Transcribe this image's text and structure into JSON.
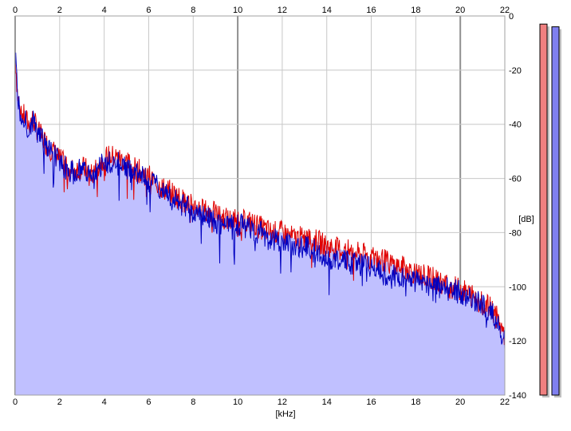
{
  "chart_data": {
    "type": "area",
    "xlabel": "[kHz]",
    "ylabel": "[dB]",
    "xlim": [
      0,
      22
    ],
    "ylim": [
      -140,
      0
    ],
    "x_ticks": [
      "0",
      "2",
      "4",
      "6",
      "8",
      "10",
      "12",
      "14",
      "16",
      "18",
      "20",
      "22"
    ],
    "y_ticks": [
      "0",
      "-20",
      "-40",
      "-60",
      "-80",
      "-100",
      "-120",
      "-140"
    ],
    "grid": true,
    "fill_color": "#c0c0ff",
    "series": [
      {
        "color": "#e00000",
        "x": [
          0,
          0.1,
          0.2,
          0.4,
          0.6,
          0.8,
          1,
          1.2,
          1.5,
          2,
          2.5,
          3,
          3.5,
          4,
          4.5,
          5,
          5.5,
          6,
          6.5,
          7,
          7.5,
          8,
          8.5,
          9,
          9.5,
          10,
          10.5,
          11,
          11.5,
          12,
          12.5,
          13,
          13.5,
          14,
          14.5,
          15,
          15.5,
          16,
          16.5,
          17,
          17.5,
          18,
          18.5,
          19,
          19.5,
          20,
          20.5,
          21,
          21.5,
          22
        ],
        "y": [
          -14,
          -28,
          -35,
          -37,
          -40,
          -38,
          -42,
          -45,
          -48,
          -53,
          -57,
          -56,
          -58,
          -52,
          -52,
          -54,
          -57,
          -59,
          -63,
          -65,
          -68,
          -70,
          -72,
          -73,
          -75,
          -76,
          -76,
          -78,
          -80,
          -80,
          -82,
          -82,
          -83,
          -85,
          -86,
          -87,
          -88,
          -89,
          -90,
          -92,
          -93,
          -95,
          -96,
          -98,
          -100,
          -101,
          -103,
          -106,
          -109,
          -118
        ]
      },
      {
        "color": "#0000c0",
        "x": [
          0,
          0.1,
          0.2,
          0.4,
          0.6,
          0.8,
          1,
          1.2,
          1.5,
          2,
          2.5,
          3,
          3.5,
          4,
          4.5,
          5,
          5.5,
          6,
          6.5,
          7,
          7.5,
          8,
          8.5,
          9,
          9.5,
          10,
          10.5,
          11,
          11.5,
          12,
          12.5,
          13,
          13.5,
          14,
          14.5,
          15,
          15.5,
          16,
          16.5,
          17,
          17.5,
          18,
          18.5,
          19,
          19.5,
          20,
          20.5,
          21,
          21.5,
          22
        ],
        "y": [
          -14,
          -29,
          -36,
          -38,
          -41,
          -39,
          -43,
          -46,
          -49,
          -54,
          -58,
          -57,
          -60,
          -54,
          -54,
          -56,
          -59,
          -61,
          -64,
          -67,
          -70,
          -72,
          -74,
          -76,
          -77,
          -77,
          -78,
          -80,
          -82,
          -83,
          -85,
          -85,
          -87,
          -89,
          -90,
          -91,
          -92,
          -93,
          -95,
          -96,
          -97,
          -98,
          -99,
          -100,
          -101,
          -102,
          -104,
          -107,
          -110,
          -120
        ]
      }
    ],
    "level_meters": [
      {
        "color": "#f08080",
        "value_db": -3
      },
      {
        "color": "#8080f0",
        "value_db": -4
      }
    ]
  }
}
